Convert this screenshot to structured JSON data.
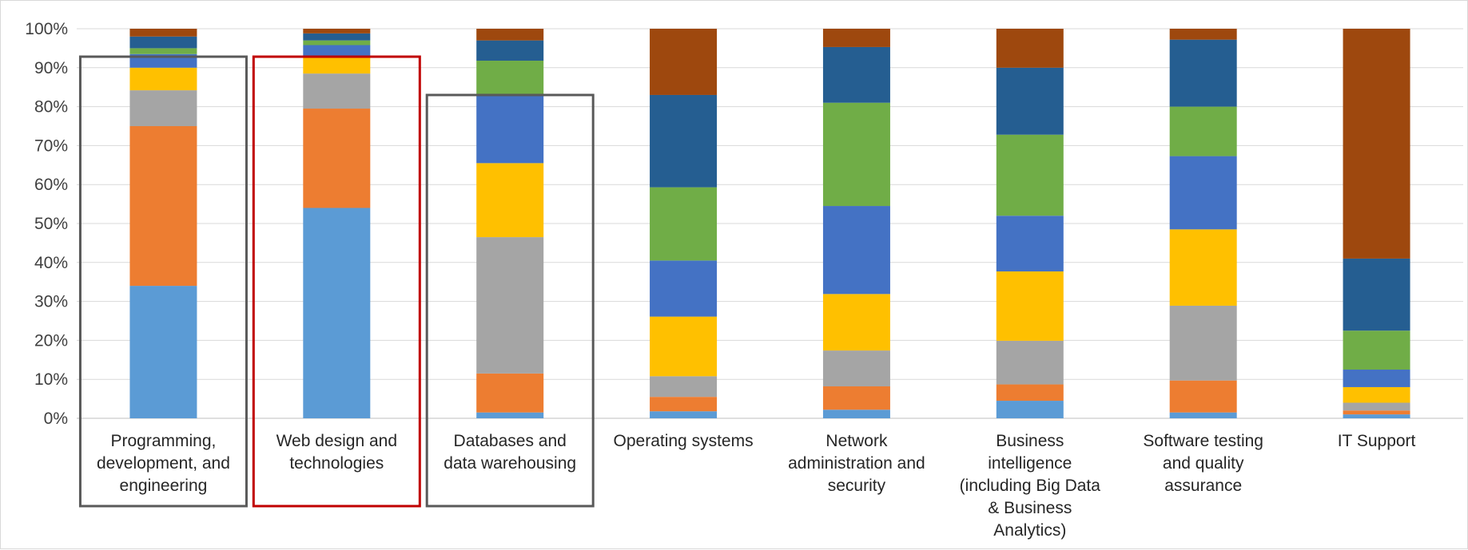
{
  "chart_data": {
    "type": "bar",
    "stacked": true,
    "percent_stacked": true,
    "title": "",
    "xlabel": "",
    "ylabel": "",
    "ylim": [
      0,
      100
    ],
    "y_ticks": [
      "0%",
      "10%",
      "20%",
      "30%",
      "40%",
      "50%",
      "60%",
      "70%",
      "80%",
      "90%",
      "100%"
    ],
    "grid": true,
    "legend": "none",
    "categories": [
      [
        "Programming,",
        "development, and",
        "engineering"
      ],
      [
        "Web design and",
        "technologies"
      ],
      [
        "Databases and",
        "data warehousing"
      ],
      [
        "Operating systems"
      ],
      [
        "Network",
        "administration and",
        "security"
      ],
      [
        "Business",
        "intelligence",
        "(including Big Data",
        "& Business",
        "Analytics)"
      ],
      [
        "Software testing",
        "and quality",
        "assurance"
      ],
      [
        "IT Support"
      ]
    ],
    "series": [
      {
        "color": "#5B9BD5",
        "values": [
          34,
          54,
          1.5,
          1.8,
          2.2,
          4.5,
          1.5,
          1.0
        ]
      },
      {
        "color": "#ED7D31",
        "values": [
          41,
          25.5,
          10,
          3.7,
          6,
          4.2,
          8.2,
          1.0
        ]
      },
      {
        "color": "#A5A5A5",
        "values": [
          9.2,
          9,
          35,
          5.3,
          9.2,
          11.2,
          19.2,
          2.0
        ]
      },
      {
        "color": "#FFC000",
        "values": [
          5.8,
          4.5,
          19,
          15.3,
          14.5,
          17.8,
          19.6,
          4.0
        ]
      },
      {
        "color": "#4472C4",
        "values": [
          3.5,
          2.8,
          17.5,
          14.4,
          22.6,
          14.3,
          18.8,
          4.5
        ]
      },
      {
        "color": "#70AD47",
        "values": [
          1.5,
          1.2,
          8.8,
          18.8,
          26.5,
          20.8,
          12.7,
          10.0
        ]
      },
      {
        "color": "#255E91",
        "values": [
          3.0,
          1.8,
          5.2,
          23.7,
          14.3,
          17.2,
          17.2,
          18.5
        ]
      },
      {
        "color": "#9E480E",
        "values": [
          2.0,
          1.2,
          3.0,
          17.0,
          4.7,
          10.0,
          2.8,
          59.0
        ]
      }
    ],
    "highlight_boxes": [
      {
        "category_index": 0,
        "color": "#595959"
      },
      {
        "category_index": 1,
        "color": "#C00000"
      },
      {
        "category_index": 2,
        "color": "#595959"
      }
    ]
  }
}
